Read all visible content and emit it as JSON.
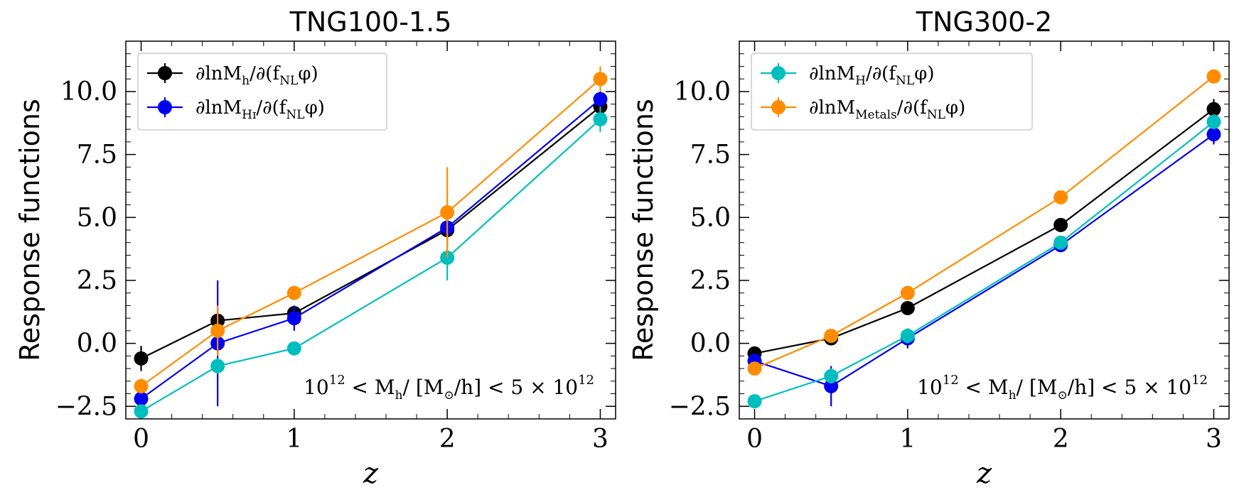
{
  "chart_data": [
    {
      "type": "line",
      "title": "TNG100-1.5",
      "xlabel": "z",
      "ylabel": "Response functions",
      "xlim": [
        -0.1,
        3.1
      ],
      "ylim": [
        -3.0,
        12.0
      ],
      "xticks": [
        "0",
        "1",
        "2",
        "3"
      ],
      "yticks": [
        "−2.5",
        "0.0",
        "2.5",
        "5.0",
        "7.5",
        "10.0"
      ],
      "legend_position": "top-left",
      "annotation": {
        "prefix": "10",
        "prefix_sup": "12",
        "mid": " < M",
        "mid_sub": "h",
        "rest": "/ [M",
        "sun": "⊙",
        "tail": "/h] < 5 × 10",
        "tail_sup": "12"
      },
      "series": [
        {
          "name": "∂lnM_h/∂(f_NL φ)",
          "label_main": "∂lnM",
          "label_sub": "h",
          "label_rest": "/∂(f",
          "label_sub2": "NL",
          "label_end": "φ)",
          "color": "#000000",
          "in_legend": true,
          "x": [
            0,
            0.5,
            1,
            2,
            3
          ],
          "y": [
            -0.6,
            0.9,
            1.2,
            4.5,
            9.4
          ],
          "err": [
            0.5,
            0.3,
            0.3,
            0.4,
            0.3
          ]
        },
        {
          "name": "∂lnM_HI/∂(f_NL φ)",
          "label_main": "∂lnM",
          "label_sub": "Hɪ",
          "label_rest": "/∂(f",
          "label_sub2": "NL",
          "label_end": "φ)",
          "color": "#0000ee",
          "in_legend": true,
          "x": [
            0,
            0.5,
            1,
            2,
            3
          ],
          "y": [
            -2.2,
            0.0,
            1.0,
            4.6,
            9.7
          ],
          "err": [
            0.3,
            2.5,
            0.5,
            0.3,
            0.3
          ]
        },
        {
          "name": "∂lnM_H/∂(f_NL φ)",
          "color": "#00bebe",
          "in_legend": false,
          "x": [
            0,
            0.5,
            1,
            2,
            3
          ],
          "y": [
            -2.7,
            -0.9,
            -0.2,
            3.4,
            8.9
          ],
          "err": [
            0.2,
            0.3,
            0.2,
            0.9,
            0.5
          ]
        },
        {
          "name": "∂lnM_Metals/∂(f_NL φ)",
          "color": "#ff8c00",
          "in_legend": false,
          "x": [
            0,
            0.5,
            1,
            2,
            3
          ],
          "y": [
            -1.7,
            0.5,
            2.0,
            5.2,
            10.5
          ],
          "err": [
            0.3,
            1.0,
            0.2,
            1.8,
            0.5
          ]
        }
      ]
    },
    {
      "type": "line",
      "title": "TNG300-2",
      "xlabel": "z",
      "ylabel": "Response functions",
      "xlim": [
        -0.1,
        3.1
      ],
      "ylim": [
        -3.0,
        12.0
      ],
      "xticks": [
        "0",
        "1",
        "2",
        "3"
      ],
      "yticks": [
        "−2.5",
        "0.0",
        "2.5",
        "5.0",
        "7.5",
        "10.0"
      ],
      "legend_position": "top-left",
      "annotation": {
        "prefix": "10",
        "prefix_sup": "12",
        "mid": " < M",
        "mid_sub": "h",
        "rest": "/ [M",
        "sun": "⊙",
        "tail": "/h] < 5 × 10",
        "tail_sup": "12"
      },
      "series": [
        {
          "name": "∂lnM_h/∂(f_NL φ)",
          "color": "#000000",
          "in_legend": false,
          "x": [
            0,
            0.5,
            1,
            2,
            3
          ],
          "y": [
            -0.4,
            0.2,
            1.4,
            4.7,
            9.3
          ],
          "err": [
            0.1,
            0.1,
            0.2,
            0.1,
            0.4
          ]
        },
        {
          "name": "∂lnM_HI/∂(f_NL φ)",
          "color": "#0000ee",
          "in_legend": false,
          "x": [
            0,
            0.5,
            1,
            2,
            3
          ],
          "y": [
            -0.7,
            -1.7,
            0.2,
            3.9,
            8.3
          ],
          "err": [
            0.3,
            0.8,
            0.4,
            0.1,
            0.4
          ]
        },
        {
          "name": "∂lnM_H/∂(f_NL φ)",
          "label_main": "∂lnM",
          "label_sub": "H",
          "label_rest": "/∂(f",
          "label_sub2": "NL",
          "label_end": "φ)",
          "color": "#00bebe",
          "in_legend": true,
          "x": [
            0,
            0.5,
            1,
            2,
            3
          ],
          "y": [
            -2.3,
            -1.3,
            0.3,
            4.0,
            8.8
          ],
          "err": [
            0.2,
            0.3,
            0.3,
            0.1,
            0.3
          ]
        },
        {
          "name": "∂lnM_Metals/∂(f_NL φ)",
          "label_main": "∂lnM",
          "label_sub": "Metals",
          "label_rest": "/∂(f",
          "label_sub2": "NL",
          "label_end": "φ)",
          "color": "#ff8c00",
          "in_legend": true,
          "x": [
            0,
            0.5,
            1,
            2,
            3
          ],
          "y": [
            -1.0,
            0.3,
            2.0,
            5.8,
            10.6
          ],
          "err": [
            0.1,
            0.1,
            0.1,
            0.2,
            0.2
          ]
        }
      ]
    }
  ]
}
